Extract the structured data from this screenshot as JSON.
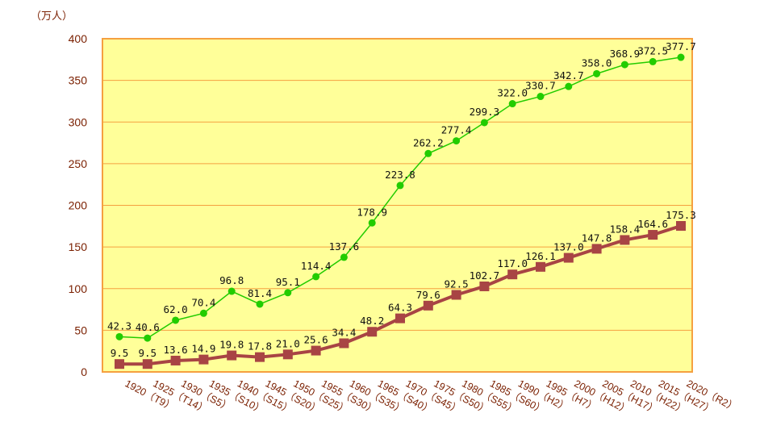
{
  "chart_data": {
    "type": "line",
    "ylabel": "（万人）",
    "ylim": [
      0,
      400
    ],
    "yticks": [
      "0",
      "50",
      "100",
      "150",
      "200",
      "250",
      "300",
      "350",
      "400"
    ],
    "ytick_values": [
      0,
      50,
      100,
      150,
      200,
      250,
      300,
      350,
      400
    ],
    "grid": true,
    "legend": "none",
    "categories": [
      "1920（T9）",
      "1925（T14）",
      "1930（S5）",
      "1935（S10）",
      "1940（S15）",
      "1945（S20）",
      "1950（S25）",
      "1955（S30）",
      "1960（S35）",
      "1965（S40）",
      "1970（S45）",
      "1975（S50）",
      "1980（S55）",
      "1985（S60）",
      "1990（H2）",
      "1995（H7）",
      "2000（H12）",
      "2005（H17）",
      "2010（H22）",
      "2015（H27）",
      "2020（R2）"
    ],
    "series": [
      {
        "values": [
          42.3,
          40.6,
          62.0,
          70.4,
          96.8,
          81.4,
          95.1,
          114.4,
          137.6,
          178.9,
          223.8,
          262.2,
          277.4,
          299.3,
          322.0,
          330.7,
          342.7,
          358.0,
          368.9,
          372.5,
          377.7
        ],
        "labels": [
          "42.3",
          "40.6",
          "62.0",
          "70.4",
          "96.8",
          "81.4",
          "95.1",
          "114.4",
          "137.6",
          "178.9",
          "223.8",
          "262.2",
          "277.4",
          "299.3",
          "322.0",
          "330.7",
          "342.7",
          "358.0",
          "368.9",
          "372.5",
          "377.7"
        ],
        "color": "#22cc00",
        "marker": "circle"
      },
      {
        "values": [
          9.5,
          9.5,
          13.6,
          14.9,
          19.8,
          17.8,
          21.0,
          25.6,
          34.4,
          48.2,
          64.3,
          79.6,
          92.5,
          102.7,
          117.0,
          126.1,
          137.0,
          147.8,
          158.4,
          164.6,
          175.3
        ],
        "labels": [
          "9.5",
          "9.5",
          "13.6",
          "14.9",
          "19.8",
          "17.8",
          "21.0",
          "25.6",
          "34.4",
          "48.2",
          "64.3",
          "79.6",
          "92.5",
          "102.7",
          "117.0",
          "126.1",
          "137.0",
          "147.8",
          "158.4",
          "164.6",
          "175.3"
        ],
        "color": "#a84444",
        "marker": "square"
      }
    ],
    "colors": {
      "plot_bg": "#ffff99",
      "plot_border": "#f5a040",
      "grid": "#f5a040",
      "axis_text": "#7a1f00"
    }
  }
}
